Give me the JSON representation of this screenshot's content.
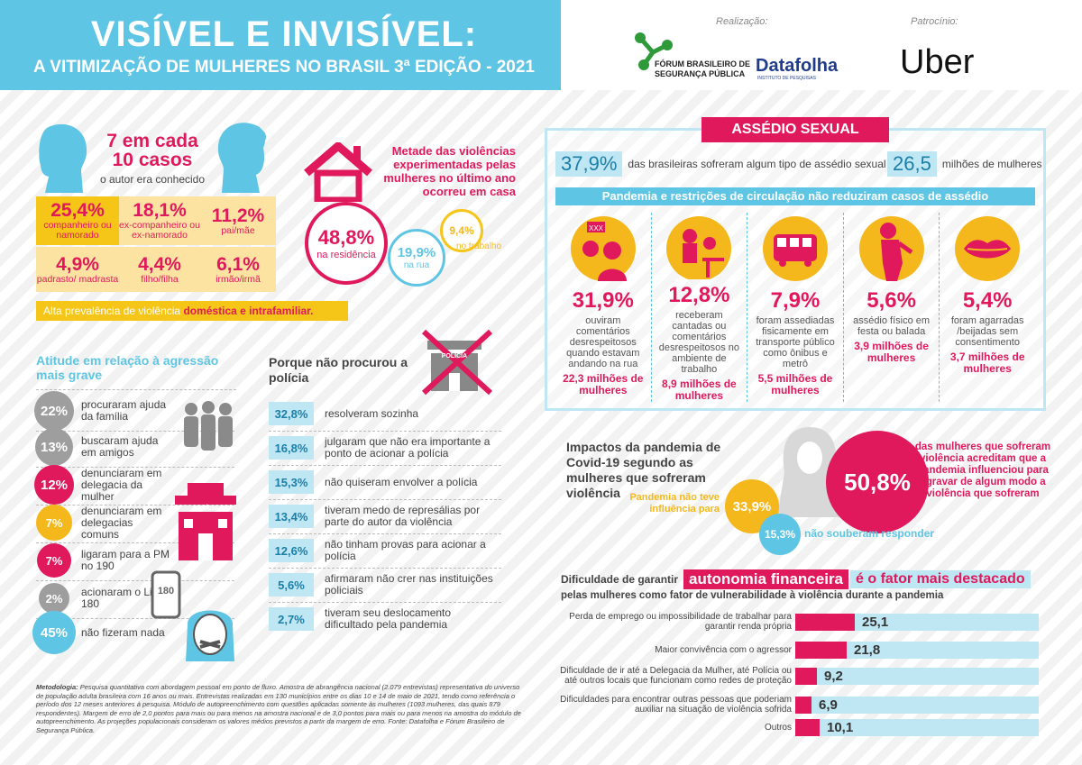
{
  "header": {
    "title": "VISÍVEL E INVISÍVEL:",
    "subtitle": "A VITIMIZAÇÃO DE MULHERES NO BRASIL   3ª EDIÇÃO - 2021"
  },
  "logos": {
    "realizacao": "Realização:",
    "patrocinio": "Patrocínio:",
    "fbsp": "FÓRUM BRASILEIRO DE",
    "fbsp2": "SEGURANÇA PÚBLICA",
    "datafolha": "Datafolha",
    "datafolha_sub": "INSTITUTO DE PESQUISAS",
    "uber": "Uber"
  },
  "author": {
    "headline": "7 em cada\n10 casos",
    "sub": "o autor era conhecido",
    "items": [
      {
        "v": "25,4%",
        "l": "companheiro ou namorado"
      },
      {
        "v": "18,1%",
        "l": "ex-companheiro ou ex-namorado"
      },
      {
        "v": "11,2%",
        "l": "pai/mãe"
      },
      {
        "v": "4,9%",
        "l": "padrasto/ madrasta"
      },
      {
        "v": "4,4%",
        "l": "filho/filha"
      },
      {
        "v": "6,1%",
        "l": "irmão/irmã"
      }
    ],
    "foot1": "Alta prevalência de violência",
    "foot2": "doméstica e intrafamiliar."
  },
  "home": {
    "headline": "Metade das violências experimentadas pelas mulheres no último ano ocorreu em casa",
    "v1": "48,8%",
    "l1": "na residência",
    "v2": "19,9%",
    "l2": "na rua",
    "v3": "9,4%",
    "l3": "no trabalho"
  },
  "attitude": {
    "title": "Atitude em relação à agressão mais grave",
    "items": [
      {
        "v": "22%",
        "l": "procuraram ajuda da família",
        "c": "#9e9e9e"
      },
      {
        "v": "13%",
        "l": "buscaram ajuda em amigos",
        "c": "#9e9e9e"
      },
      {
        "v": "12%",
        "l": "denunciaram em delegacia da mulher",
        "c": "#e0195d"
      },
      {
        "v": "7%",
        "l": "denunciaram em delegacias comuns",
        "c": "#f5b81c"
      },
      {
        "v": "7%",
        "l": "ligaram para a PM no 190",
        "c": "#e0195d"
      },
      {
        "v": "2%",
        "l": "acionaram o Ligue 180",
        "c": "#9e9e9e"
      },
      {
        "v": "45%",
        "l": "não fizeram nada",
        "c": "#5fc5e4"
      }
    ],
    "police_sign": "POLÍCIA",
    "phone": "180"
  },
  "police": {
    "title": "Porque não procurou a polícia",
    "items": [
      {
        "v": "32,8%",
        "l": "resolveram sozinha"
      },
      {
        "v": "16,8%",
        "l": "julgaram que não era importante a ponto de acionar a polícia"
      },
      {
        "v": "15,3%",
        "l": "não quiseram envolver a polícia"
      },
      {
        "v": "13,4%",
        "l": "tiveram medo de represálias por parte do autor da violência"
      },
      {
        "v": "12,6%",
        "l": "não tinham provas para acionar a polícia"
      },
      {
        "v": "5,6%",
        "l": "afirmaram não crer nas instituições policiais"
      },
      {
        "v": "2,7%",
        "l": "tiveram seu deslocamento dificultado pela pandemia"
      }
    ],
    "sign": "POLÍCIA"
  },
  "method": {
    "label": "Metodologia:",
    "text": " Pesquisa quantitativa com abordagem pessoal em ponto de fluxo. Amostra de abrangência nacional (2.079 entrevistas) representativa do universo de população adulta brasileira com 16 anos ou mais. Entrevistas realizadas em 130 municípios entre os dias 10 e 14 de maio de 2021, tendo como referência o período dos 12 meses anteriores à pesquisa. Módulo de autopreenchimento com questões aplicadas somente às mulheres (1093 mulheres, das quais 879 respondentes). Margem de erro de 2,0 pontos para mais ou para menos na amostra nacional e de 3,0 pontos para mais ou para menos na amostra do módulo de autopreenchimento. As projeções populacionais consideram os valores médios previstos a partir da margem de erro. Fonte: Datafolha e Fórum Brasileiro de Segurança Pública."
  },
  "harass": {
    "title": "ASSÉDIO SEXUAL",
    "v1": "37,9%",
    "l1": "das brasileiras sofreram algum tipo de assédio sexual",
    "v2": "26,5",
    "l2": "milhões de mulheres",
    "band": "Pandemia e restrições de circulação não reduziram casos de assédio",
    "xxx": "XXX",
    "items": [
      {
        "v": "31,9%",
        "l": "ouviram comentários desrespeitosos quando estavam andando na rua",
        "m": "22,3 milhões de mulheres"
      },
      {
        "v": "12,8%",
        "l": "receberam cantadas ou comentários desrespeitosos no ambiente de trabalho",
        "m": "8,9 milhões de mulheres"
      },
      {
        "v": "7,9%",
        "l": "foram assediadas fisicamente em transporte público como ônibus e metrô",
        "m": "5,5 milhões de mulheres"
      },
      {
        "v": "5,6%",
        "l": "assédio físico em festa ou balada",
        "m": "3,9 milhões de mulheres"
      },
      {
        "v": "5,4%",
        "l": "foram agarradas /beijadas sem consentimento",
        "m": "3,7 milhões de mulheres"
      }
    ]
  },
  "pandemic": {
    "title": "Impactos da pandemia de Covid-19 segundo as mulheres que sofreram violência",
    "v1": "50,8%",
    "l1": "das mulheres que sofreram violência acreditam que a pandemia influenciou para agravar de algum modo a violência que sofreram",
    "v2": "33,9%",
    "l2": "Pandemia não teve influência para",
    "v3": "15,3%",
    "l3": "não souberam responder"
  },
  "finance": {
    "t1": "Dificuldade de garantir",
    "t2": "autonomia financeira",
    "t3": "é o fator mais destacado",
    "sub": "pelas mulheres como fator de vulnerabilidade à violência durante a pandemia"
  },
  "chart_data": {
    "type": "bar",
    "categories": [
      "Perda de emprego ou impossibilidade de trabalhar para garantir renda própria",
      "Maior convivência com o agressor",
      "Dificuldade de ir até a Delegacia da Mulher, até Polícia ou até outros locais que funcionam como redes de proteção",
      "Dificuldades para encontrar outras pessoas que poderiam auxiliar na situação de violência sofrida",
      "Outros"
    ],
    "values": [
      25.1,
      21.8,
      9.2,
      6.9,
      10.1
    ],
    "labels": [
      "25,1",
      "21,8",
      "9,2",
      "6,9",
      "10,1"
    ],
    "bar_color": "#e0195d",
    "track_color": "#bfe6f3"
  }
}
